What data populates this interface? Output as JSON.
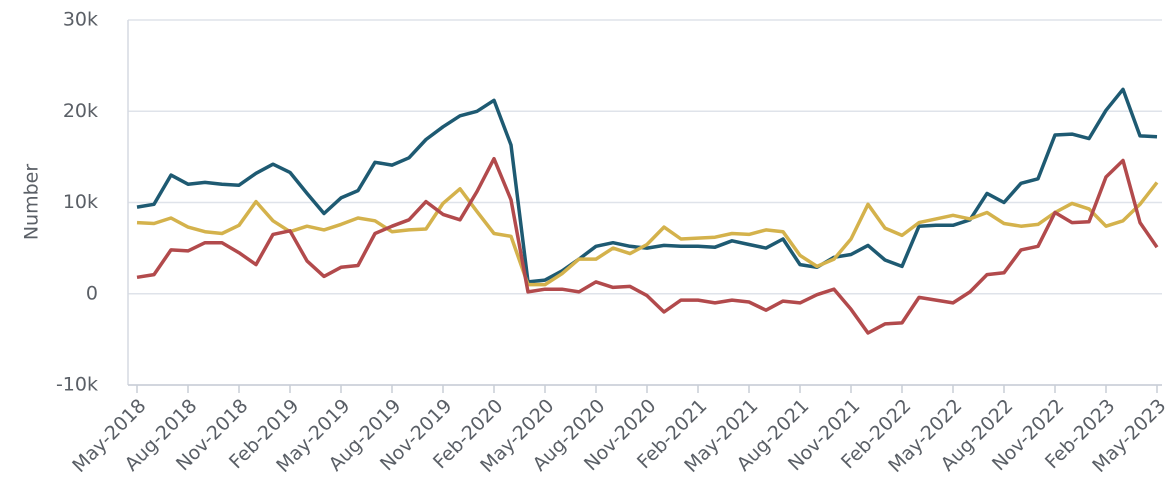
{
  "chart_data": {
    "type": "line",
    "y_label": "Number",
    "categories": [
      "May-2018",
      null,
      null,
      "Aug-2018",
      null,
      null,
      "Nov-2018",
      null,
      null,
      "Feb-2019",
      null,
      null,
      "May-2019",
      null,
      null,
      "Aug-2019",
      null,
      null,
      "Nov-2019",
      null,
      null,
      "Feb-2020",
      null,
      null,
      "May-2020",
      null,
      null,
      "Aug-2020",
      null,
      null,
      "Nov-2020",
      null,
      null,
      "Feb-2021",
      null,
      null,
      "May-2021",
      null,
      null,
      "Aug-2021",
      null,
      null,
      "Nov-2021",
      null,
      null,
      "Feb-2022",
      null,
      null,
      "May-2022",
      null,
      null,
      "Aug-2022",
      null,
      null,
      "Nov-2022",
      null,
      null,
      "Feb-2023",
      null,
      null,
      "May-2023"
    ],
    "series": [
      {
        "color": "#1e5a72",
        "values": [
          9500,
          9800,
          13000,
          12000,
          12200,
          12000,
          11900,
          13200,
          14200,
          13300,
          11000,
          8800,
          10500,
          11300,
          14400,
          14100,
          14900,
          16900,
          18300,
          19500,
          20000,
          21200,
          16300,
          1300,
          1500,
          2500,
          3800,
          5200,
          5600,
          5200,
          5000,
          5300,
          5200,
          5200,
          5100,
          5800,
          5400,
          5000,
          6000,
          3200,
          2900,
          4000,
          4300,
          5300,
          3700,
          3000,
          7400,
          7500,
          7500,
          8100,
          11000,
          10000,
          12100,
          12600,
          17400,
          17500,
          17000,
          20100,
          22400,
          17300,
          17200
        ]
      },
      {
        "color": "#d4b24c",
        "values": [
          7800,
          7700,
          8300,
          7300,
          6800,
          6600,
          7500,
          10100,
          8000,
          6800,
          7400,
          7000,
          7600,
          8300,
          8000,
          6800,
          7000,
          7100,
          9900,
          11500,
          9000,
          6600,
          6300,
          1000,
          1000,
          2200,
          3800,
          3800,
          5000,
          4400,
          5400,
          7300,
          6000,
          6100,
          6200,
          6600,
          6500,
          7000,
          6800,
          4200,
          3000,
          3800,
          6000,
          9800,
          7200,
          6400,
          7800,
          8200,
          8600,
          8200,
          8900,
          7700,
          7400,
          7600,
          8900,
          9900,
          9300,
          7400,
          8000,
          9800,
          12200
        ]
      },
      {
        "color": "#b24a4c",
        "values": [
          1800,
          2100,
          4800,
          4700,
          5600,
          5600,
          4500,
          3200,
          6500,
          6900,
          3600,
          1900,
          2900,
          3100,
          6600,
          7400,
          8100,
          10100,
          8700,
          8100,
          11200,
          14800,
          10300,
          200,
          500,
          500,
          200,
          1300,
          700,
          800,
          -200,
          -2000,
          -700,
          -700,
          -1000,
          -700,
          -900,
          -1800,
          -800,
          -1000,
          -100,
          500,
          -1700,
          -4300,
          -3300,
          -3200,
          -400,
          -700,
          -1000,
          200,
          2100,
          2300,
          4800,
          5200,
          8900,
          7800,
          7900,
          12800,
          14600,
          7800,
          5100
        ]
      }
    ],
    "ylim": [
      -10000,
      30000
    ],
    "yticks": [
      {
        "value": -10000,
        "label": "-10k"
      },
      0,
      {
        "value": 10000,
        "label": "10k"
      },
      {
        "value": 20000,
        "label": "20k"
      },
      {
        "value": 30000,
        "label": "30k"
      }
    ],
    "grid": true
  }
}
